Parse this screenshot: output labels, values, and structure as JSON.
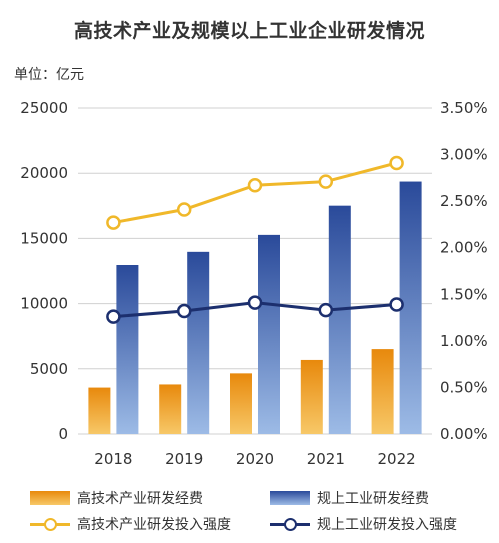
{
  "title": "高技术产业及规模以上工业企业研发情况",
  "unit_label": "单位：亿元",
  "colors": {
    "hightech_bar_top": "#E8890C",
    "hightech_bar_bottom": "#F7C868",
    "industry_bar_top": "#2A4A9A",
    "industry_bar_bottom": "#9DBBE6",
    "hightech_line": "#F0B82A",
    "industry_line": "#1C2F6E",
    "grid": "#D0D0D0"
  },
  "legend": [
    {
      "label": "高技术产业研发经费",
      "kind": "bar",
      "color_key": "hightech"
    },
    {
      "label": "规上工业研发经费",
      "kind": "bar",
      "color_key": "industry"
    },
    {
      "label": "高技术产业研发投入强度",
      "kind": "line",
      "color_key": "hightech_line"
    },
    {
      "label": "规上工业研发投入强度",
      "kind": "line",
      "color_key": "industry_line"
    }
  ],
  "chart_data": {
    "type": "bar",
    "title": "高技术产业及规模以上工业企业研发情况",
    "categories": [
      "2018",
      "2019",
      "2020",
      "2021",
      "2022"
    ],
    "ylim": [
      0,
      25000
    ],
    "y_ticks": [
      "0",
      "5000",
      "10000",
      "15000",
      "20000",
      "25000"
    ],
    "y2lim": [
      0.0,
      3.5
    ],
    "y2_ticks": [
      "0.00%",
      "0.50%",
      "1.00%",
      "1.50%",
      "2.00%",
      "2.50%",
      "3.00%",
      "3.50%"
    ],
    "grid": true,
    "legend_position": "bottom",
    "series": [
      {
        "name": "高技术产业研发经费",
        "type": "bar",
        "axis": "left",
        "values": [
          3560,
          3800,
          4650,
          5680,
          6510
        ]
      },
      {
        "name": "规上工业研发经费",
        "type": "bar",
        "axis": "left",
        "values": [
          12960,
          13970,
          15270,
          17510,
          19360
        ]
      },
      {
        "name": "高技术产业研发投入强度",
        "type": "line",
        "axis": "right",
        "values": [
          2.27,
          2.41,
          2.67,
          2.71,
          2.91
        ]
      },
      {
        "name": "规上工业研发投入强度",
        "type": "line",
        "axis": "right",
        "values": [
          1.26,
          1.32,
          1.41,
          1.33,
          1.39
        ]
      }
    ]
  }
}
